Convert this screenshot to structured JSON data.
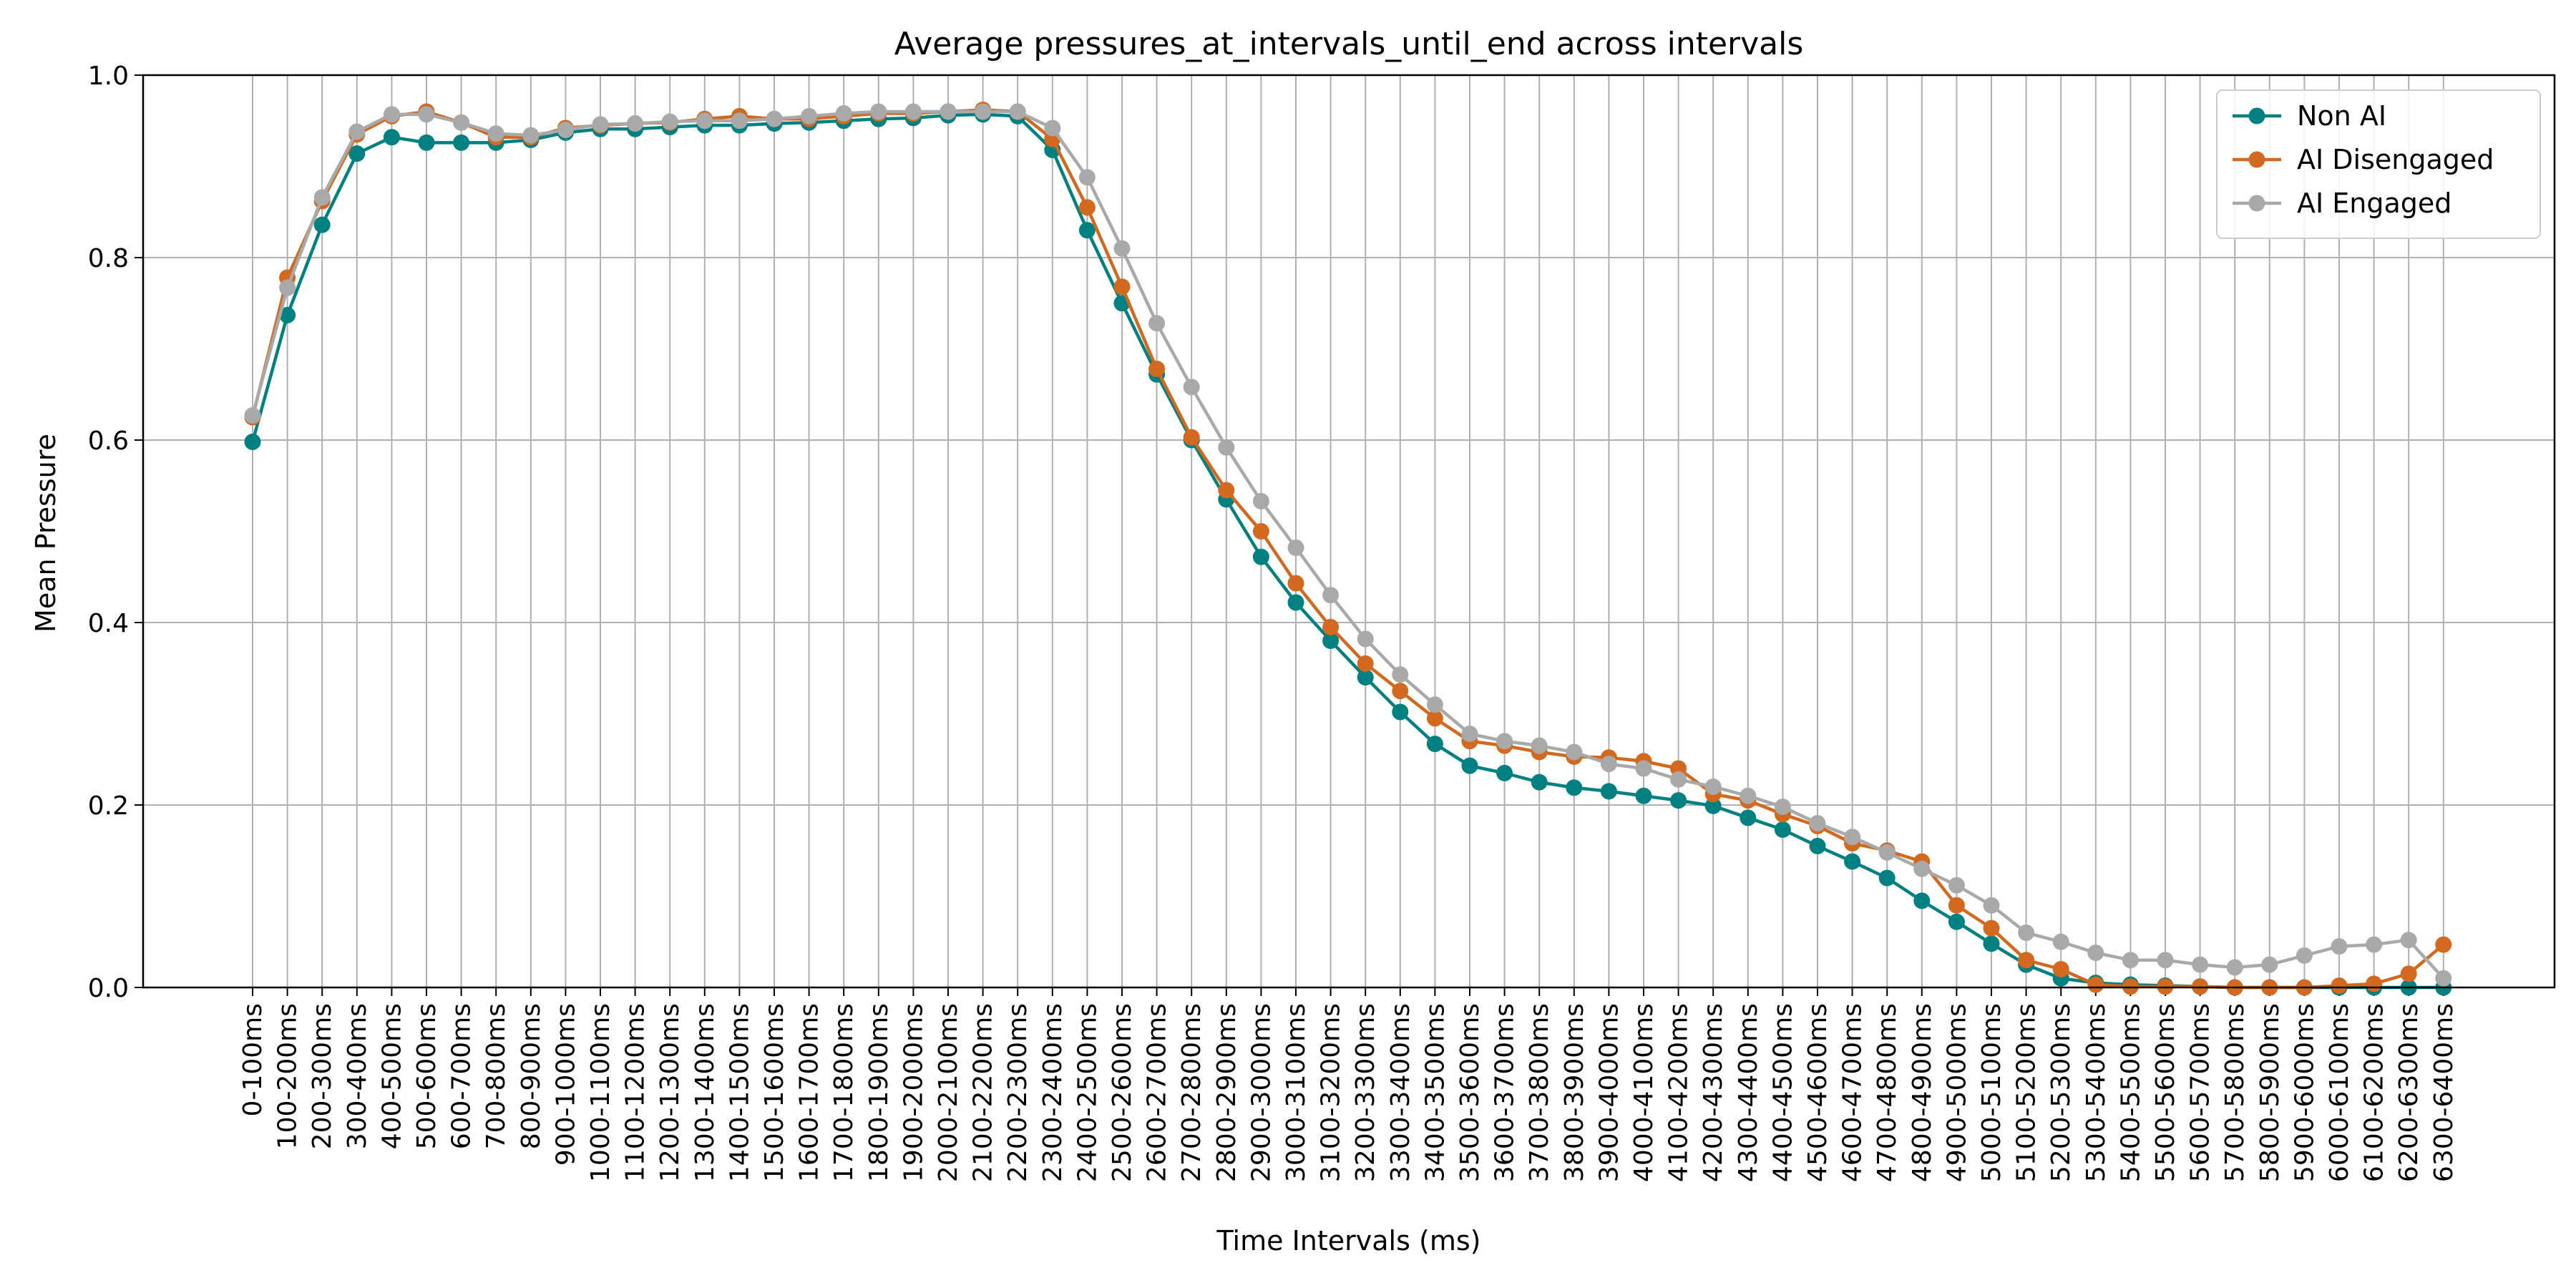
{
  "chart_data": {
    "type": "line",
    "title": "Average pressures_at_intervals_until_end across intervals",
    "xlabel": "Time Intervals (ms)",
    "ylabel": "Mean Pressure",
    "ylim": [
      0,
      1
    ],
    "yticks": [
      "0.0",
      "0.2",
      "0.4",
      "0.6",
      "0.8",
      "1.0"
    ],
    "grid": true,
    "legend_position": "top-right",
    "categories": [
      "0-100ms",
      "100-200ms",
      "200-300ms",
      "300-400ms",
      "400-500ms",
      "500-600ms",
      "600-700ms",
      "700-800ms",
      "800-900ms",
      "900-1000ms",
      "1000-1100ms",
      "1100-1200ms",
      "1200-1300ms",
      "1300-1400ms",
      "1400-1500ms",
      "1500-1600ms",
      "1600-1700ms",
      "1700-1800ms",
      "1800-1900ms",
      "1900-2000ms",
      "2000-2100ms",
      "2100-2200ms",
      "2200-2300ms",
      "2300-2400ms",
      "2400-2500ms",
      "2500-2600ms",
      "2600-2700ms",
      "2700-2800ms",
      "2800-2900ms",
      "2900-3000ms",
      "3000-3100ms",
      "3100-3200ms",
      "3200-3300ms",
      "3300-3400ms",
      "3400-3500ms",
      "3500-3600ms",
      "3600-3700ms",
      "3700-3800ms",
      "3800-3900ms",
      "3900-4000ms",
      "4000-4100ms",
      "4100-4200ms",
      "4200-4300ms",
      "4300-4400ms",
      "4400-4500ms",
      "4500-4600ms",
      "4600-4700ms",
      "4700-4800ms",
      "4800-4900ms",
      "4900-5000ms",
      "5000-5100ms",
      "5100-5200ms",
      "5200-5300ms",
      "5300-5400ms",
      "5400-5500ms",
      "5500-5600ms",
      "5600-5700ms",
      "5700-5800ms",
      "5800-5900ms",
      "5900-6000ms",
      "6000-6100ms",
      "6100-6200ms",
      "6200-6300ms",
      "6300-6400ms"
    ],
    "series": [
      {
        "name": "Non AI",
        "color": "#008080",
        "values": [
          0.598,
          0.737,
          0.836,
          0.914,
          0.932,
          0.926,
          0.926,
          0.926,
          0.929,
          0.937,
          0.941,
          0.941,
          0.943,
          0.945,
          0.945,
          0.947,
          0.948,
          0.95,
          0.952,
          0.953,
          0.956,
          0.957,
          0.955,
          0.918,
          0.83,
          0.75,
          0.672,
          0.6,
          0.535,
          0.472,
          0.422,
          0.38,
          0.34,
          0.302,
          0.267,
          0.243,
          0.235,
          0.225,
          0.219,
          0.215,
          0.21,
          0.205,
          0.199,
          0.186,
          0.173,
          0.155,
          0.138,
          0.12,
          0.095,
          0.072,
          0.048,
          0.025,
          0.01,
          0.005,
          0.003,
          0.002,
          0.001,
          0,
          0,
          0,
          0,
          0,
          0,
          0
        ]
      },
      {
        "name": "AI Disengaged",
        "color": "#D2691E",
        "values": [
          0.625,
          0.778,
          0.862,
          0.935,
          0.955,
          0.96,
          0.948,
          0.932,
          0.932,
          0.942,
          0.945,
          0.947,
          0.948,
          0.952,
          0.955,
          0.952,
          0.952,
          0.955,
          0.958,
          0.958,
          0.96,
          0.962,
          0.96,
          0.93,
          0.855,
          0.768,
          0.678,
          0.603,
          0.545,
          0.5,
          0.443,
          0.395,
          0.355,
          0.325,
          0.295,
          0.27,
          0.265,
          0.258,
          0.253,
          0.252,
          0.248,
          0.24,
          0.212,
          0.205,
          0.19,
          0.177,
          0.158,
          0.15,
          0.138,
          0.09,
          0.065,
          0.03,
          0.02,
          0.003,
          0.001,
          0.001,
          0.001,
          0,
          0,
          0,
          0.002,
          0.004,
          0.015,
          0.047
        ]
      },
      {
        "name": "AI Engaged",
        "color": "#A9A9A9",
        "values": [
          0.627,
          0.767,
          0.866,
          0.938,
          0.957,
          0.957,
          0.948,
          0.936,
          0.934,
          0.94,
          0.946,
          0.947,
          0.949,
          0.95,
          0.95,
          0.952,
          0.955,
          0.958,
          0.96,
          0.96,
          0.96,
          0.96,
          0.96,
          0.942,
          0.888,
          0.81,
          0.728,
          0.658,
          0.592,
          0.533,
          0.482,
          0.43,
          0.382,
          0.343,
          0.31,
          0.278,
          0.27,
          0.265,
          0.258,
          0.245,
          0.24,
          0.228,
          0.22,
          0.21,
          0.198,
          0.18,
          0.165,
          0.148,
          0.13,
          0.112,
          0.09,
          0.06,
          0.05,
          0.038,
          0.03,
          0.03,
          0.025,
          0.022,
          0.025,
          0.035,
          0.045,
          0.047,
          0.052,
          0.01
        ]
      }
    ]
  }
}
